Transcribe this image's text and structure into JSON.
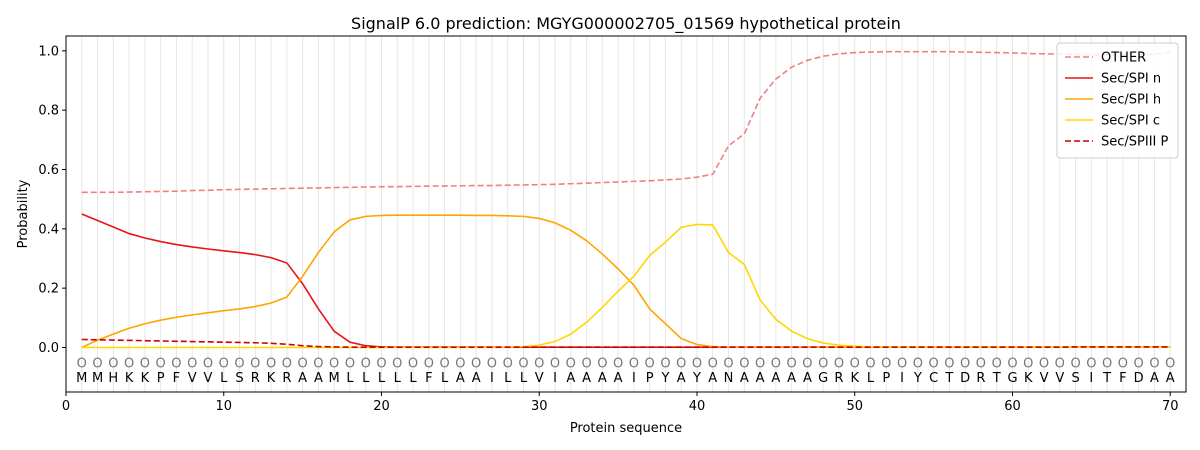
{
  "chart_data": {
    "type": "line",
    "title": "SignalP 6.0 prediction: MGYG000002705_01569 hypothetical protein",
    "xlabel": "Protein sequence",
    "ylabel": "Probability",
    "xlim": [
      0,
      71
    ],
    "ylim": [
      -0.15,
      1.05
    ],
    "xticks": [
      0,
      10,
      20,
      30,
      40,
      50,
      60,
      70
    ],
    "yticks": [
      "0.0",
      "0.2",
      "0.4",
      "0.6",
      "0.8",
      "1.0"
    ],
    "grid": "vertical lines at each residue",
    "legend_position": "top-right",
    "sequence": [
      "M",
      "M",
      "H",
      "K",
      "K",
      "P",
      "F",
      "V",
      "V",
      "L",
      "S",
      "R",
      "K",
      "R",
      "A",
      "A",
      "M",
      "L",
      "L",
      "L",
      "L",
      "L",
      "F",
      "L",
      "A",
      "A",
      "I",
      "L",
      "L",
      "V",
      "I",
      "A",
      "A",
      "A",
      "A",
      "I",
      "P",
      "Y",
      "A",
      "Y",
      "A",
      "N",
      "A",
      "A",
      "A",
      "A",
      "A",
      "G",
      "R",
      "K",
      "L",
      "P",
      "I",
      "Y",
      "C",
      "T",
      "D",
      "R",
      "T",
      "G",
      "K",
      "V",
      "V",
      "S",
      "I",
      "T",
      "F",
      "D",
      "A",
      "A"
    ],
    "residue_marker": "O",
    "series": [
      {
        "name": "OTHER",
        "color": "#f08080",
        "dash": true,
        "values": [
          0.523,
          0.523,
          0.523,
          0.524,
          0.525,
          0.526,
          0.527,
          0.529,
          0.53,
          0.532,
          0.533,
          0.534,
          0.535,
          0.536,
          0.537,
          0.538,
          0.539,
          0.54,
          0.541,
          0.542,
          0.542,
          0.543,
          0.544,
          0.544,
          0.545,
          0.546,
          0.546,
          0.547,
          0.548,
          0.549,
          0.55,
          0.552,
          0.554,
          0.556,
          0.558,
          0.56,
          0.562,
          0.565,
          0.568,
          0.574,
          0.584,
          0.68,
          0.72,
          0.84,
          0.905,
          0.945,
          0.968,
          0.982,
          0.99,
          0.994,
          0.996,
          0.997,
          0.997,
          0.997,
          0.997,
          0.997,
          0.996,
          0.995,
          0.994,
          0.993,
          0.991,
          0.99,
          0.989,
          0.988,
          0.987,
          0.987,
          0.987,
          0.988,
          0.989,
          0.995
        ]
      },
      {
        "name": "Sec/SPI n",
        "color": "#e8141a",
        "dash": false,
        "values": [
          0.45,
          0.428,
          0.406,
          0.384,
          0.369,
          0.357,
          0.347,
          0.339,
          0.332,
          0.326,
          0.32,
          0.313,
          0.303,
          0.285,
          0.215,
          0.13,
          0.055,
          0.018,
          0.006,
          0.002,
          0.001,
          0.001,
          0.001,
          0.001,
          0.001,
          0.001,
          0.001,
          0.001,
          0.001,
          0.001,
          0.001,
          0.001,
          0.001,
          0.001,
          0.001,
          0.001,
          0.001,
          0.001,
          0.001,
          0.001,
          0.001,
          0.001,
          0.001,
          0.001,
          0.001,
          0.001,
          0.001,
          0.001,
          0.001,
          0.001,
          0.001,
          0.001,
          0.001,
          0.001,
          0.001,
          0.001,
          0.001,
          0.001,
          0.001,
          0.001,
          0.001,
          0.001,
          0.001,
          0.001,
          0.001,
          0.001,
          0.001,
          0.001,
          0.001,
          0.001
        ]
      },
      {
        "name": "Sec/SPI h",
        "color": "#ffa500",
        "dash": false,
        "values": [
          0.0,
          0.025,
          0.045,
          0.065,
          0.08,
          0.092,
          0.102,
          0.11,
          0.117,
          0.124,
          0.13,
          0.138,
          0.15,
          0.17,
          0.24,
          0.32,
          0.39,
          0.43,
          0.442,
          0.445,
          0.446,
          0.446,
          0.446,
          0.446,
          0.446,
          0.445,
          0.445,
          0.444,
          0.442,
          0.435,
          0.42,
          0.395,
          0.36,
          0.315,
          0.265,
          0.21,
          0.13,
          0.08,
          0.03,
          0.01,
          0.003,
          0.001,
          0.001,
          0.001,
          0.001,
          0.001,
          0.001,
          0.001,
          0.001,
          0.001,
          0.001,
          0.001,
          0.001,
          0.001,
          0.001,
          0.001,
          0.001,
          0.001,
          0.001,
          0.001,
          0.001,
          0.001,
          0.001,
          0.001,
          0.001,
          0.001,
          0.001,
          0.001,
          0.001,
          0.001
        ]
      },
      {
        "name": "Sec/SPI c",
        "color": "#ffd700",
        "dash": false,
        "values": [
          0.0,
          0.0,
          0.0,
          0.0,
          0.0,
          0.0,
          0.0,
          0.0,
          0.0,
          0.0,
          0.0,
          0.0,
          0.0,
          0.0,
          0.0,
          0.0,
          0.0,
          0.0,
          0.0,
          0.0,
          0.0,
          0.0,
          0.0,
          0.0,
          0.0,
          0.0,
          0.0,
          0.001,
          0.003,
          0.008,
          0.02,
          0.045,
          0.085,
          0.135,
          0.19,
          0.24,
          0.31,
          0.355,
          0.405,
          0.415,
          0.413,
          0.32,
          0.28,
          0.16,
          0.095,
          0.055,
          0.03,
          0.015,
          0.008,
          0.004,
          0.002,
          0.001,
          0.001,
          0.001,
          0.001,
          0.001,
          0.001,
          0.001,
          0.001,
          0.001,
          0.001,
          0.001,
          0.001,
          0.001,
          0.001,
          0.001,
          0.001,
          0.001,
          0.001,
          0.001
        ]
      },
      {
        "name": "Sec/SPIII P",
        "color": "#cc0000",
        "dash": true,
        "values": [
          0.027,
          0.026,
          0.025,
          0.024,
          0.023,
          0.022,
          0.021,
          0.02,
          0.019,
          0.018,
          0.017,
          0.016,
          0.014,
          0.011,
          0.006,
          0.003,
          0.002,
          0.001,
          0.001,
          0.001,
          0.001,
          0.001,
          0.001,
          0.001,
          0.001,
          0.001,
          0.001,
          0.001,
          0.001,
          0.001,
          0.001,
          0.001,
          0.001,
          0.001,
          0.001,
          0.001,
          0.001,
          0.001,
          0.001,
          0.001,
          0.001,
          0.001,
          0.001,
          0.001,
          0.001,
          0.001,
          0.001,
          0.001,
          0.001,
          0.001,
          0.001,
          0.001,
          0.001,
          0.001,
          0.001,
          0.001,
          0.001,
          0.001,
          0.001,
          0.001,
          0.001,
          0.001,
          0.001,
          0.002,
          0.002,
          0.002,
          0.002,
          0.002,
          0.002,
          0.002
        ]
      }
    ]
  }
}
